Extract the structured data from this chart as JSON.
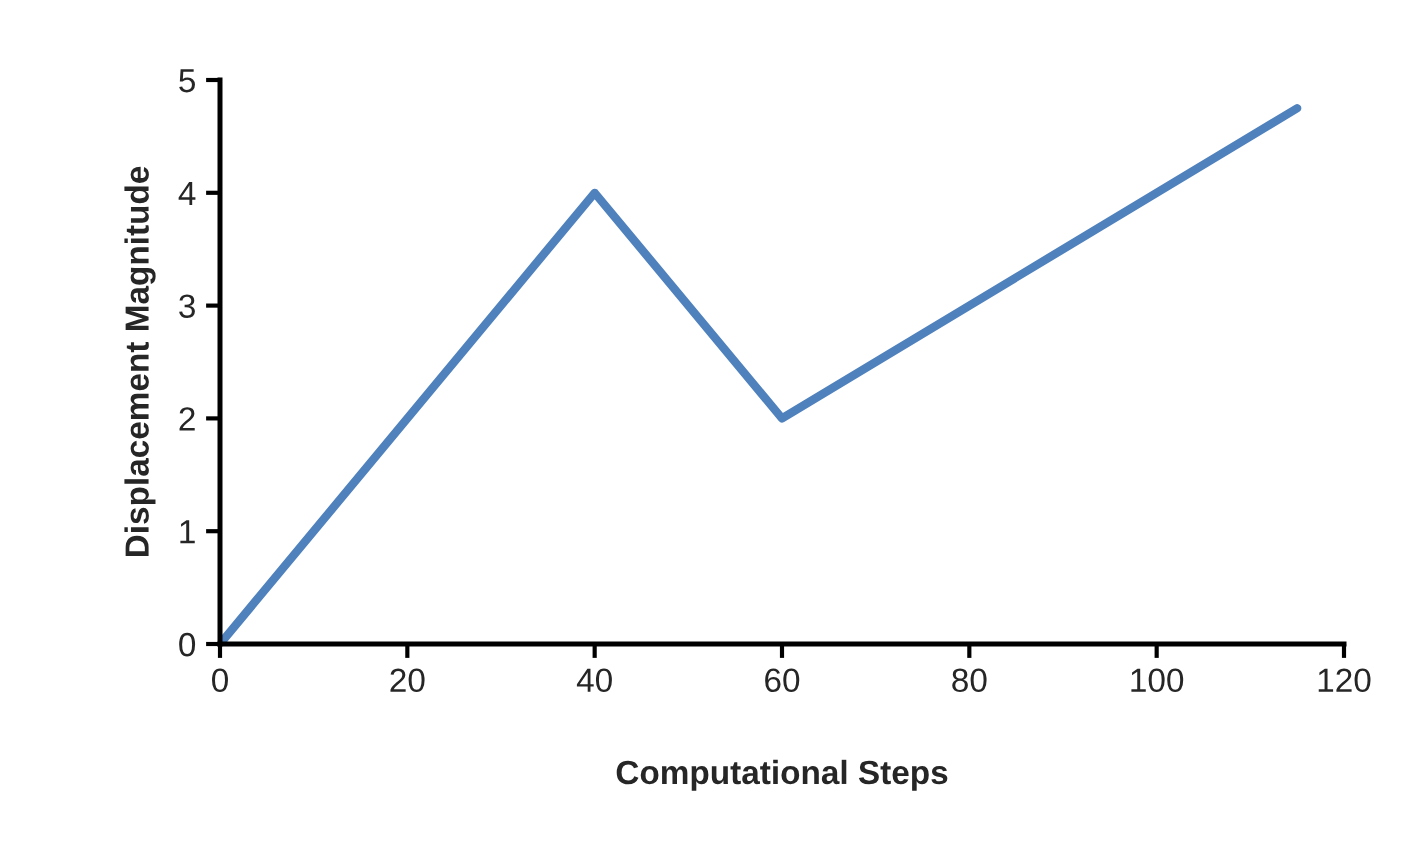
{
  "chart_data": {
    "type": "line",
    "xlabel": "Computational Steps",
    "ylabel": "Displacement Magnitude",
    "x": [
      0,
      40,
      60,
      115
    ],
    "series": [
      {
        "color": "#4f81bd",
        "values": [
          0,
          4,
          2,
          4.75
        ]
      }
    ],
    "xlim": [
      0,
      120
    ],
    "xticks": [
      0,
      20,
      40,
      60,
      80,
      100,
      120
    ],
    "ylim": [
      0,
      5
    ],
    "yticks": [
      0,
      1,
      2,
      3,
      4,
      5
    ],
    "grid": false,
    "legend": false,
    "marker": "none",
    "line_style": "solid"
  }
}
